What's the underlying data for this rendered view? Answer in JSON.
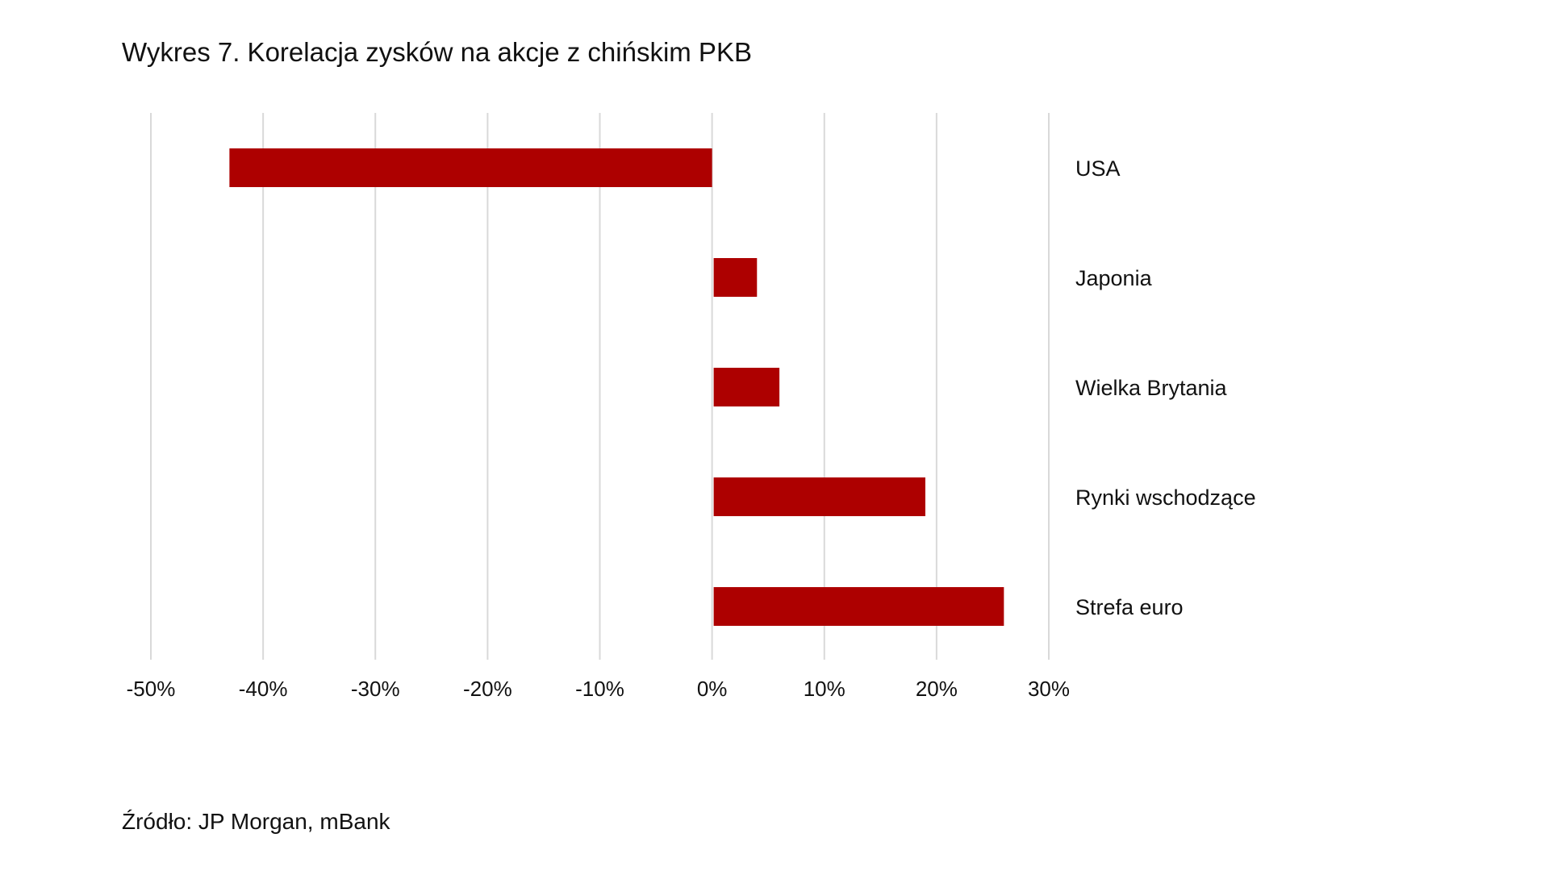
{
  "chart_data": {
    "type": "bar",
    "orientation": "horizontal",
    "title": "Wykres 7. Korelacja zysków na akcje z chińskim PKB",
    "categories": [
      "USA",
      "Japonia",
      "Wielka Brytania",
      "Rynki wschodzące",
      "Strefa euro"
    ],
    "values": [
      -43,
      4,
      6,
      19,
      26
    ],
    "unit": "%",
    "xlim": [
      -50,
      30
    ],
    "xticks": [
      -50,
      -40,
      -30,
      -20,
      -10,
      0,
      10,
      20,
      30
    ],
    "xtick_labels": [
      "-50%",
      "-40%",
      "-30%",
      "-20%",
      "-10%",
      "0%",
      "10%",
      "20%",
      "30%"
    ],
    "grid": "vertical",
    "bar_color": "#ad0000",
    "grid_color": "#d9d9d9",
    "source": "Źródło: JP Morgan, mBank"
  }
}
